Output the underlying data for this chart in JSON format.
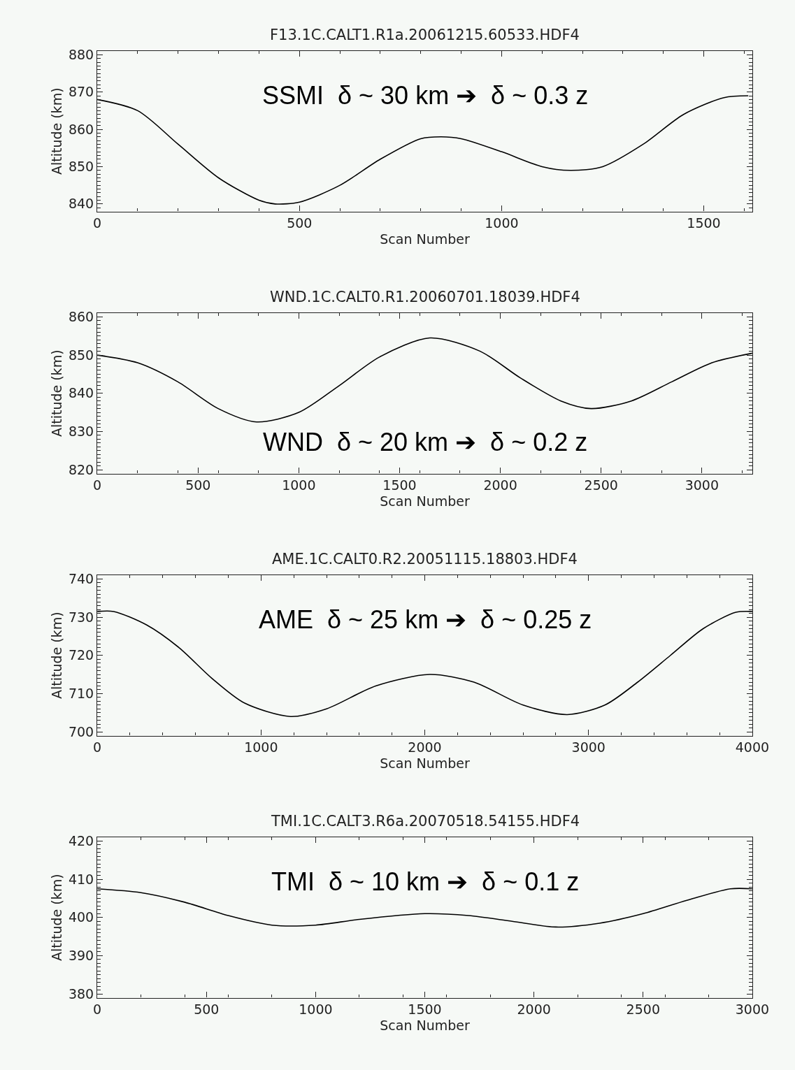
{
  "chart_data": [
    {
      "type": "line",
      "title": "F13.1C.CALT1.R1a.20061215.60533.HDF4",
      "xlabel": "Scan Number",
      "ylabel": "Altitude (km)",
      "annotations": [
        "SSMI  δ ~ 30 km ➔  δ ~ 0.3 z"
      ],
      "xlim": [
        0,
        1620
      ],
      "xticks": [
        0,
        500,
        1000,
        1500
      ],
      "ylim": [
        838,
        881
      ],
      "yticks": [
        840,
        850,
        860,
        870,
        880
      ],
      "grid": false,
      "series": [
        {
          "color": "#000000",
          "x": [
            0,
            100,
            200,
            300,
            400,
            440,
            500,
            600,
            700,
            800,
            850,
            900,
            1000,
            1100,
            1170,
            1250,
            1350,
            1450,
            1550,
            1610
          ],
          "values": [
            868,
            865,
            856,
            847,
            841,
            840,
            840.5,
            845,
            852,
            857.5,
            858,
            857.5,
            854,
            850,
            849,
            850,
            856,
            864,
            868.5,
            869
          ]
        }
      ]
    },
    {
      "type": "line",
      "title": "WND.1C.CALT0.R1.20060701.18039.HDF4",
      "xlabel": "Scan Number",
      "ylabel": "Altitude (km)",
      "annotations": [
        "WND  δ ~ 20 km ➔  δ ~ 0.2 z"
      ],
      "xlim": [
        0,
        3250
      ],
      "xticks": [
        0,
        500,
        1000,
        1500,
        2000,
        2500,
        3000
      ],
      "ylim": [
        819,
        861
      ],
      "yticks": [
        820,
        830,
        840,
        850,
        860
      ],
      "grid": false,
      "series": [
        {
          "color": "#000000",
          "x": [
            0,
            200,
            400,
            600,
            790,
            1000,
            1200,
            1400,
            1650,
            1900,
            2100,
            2300,
            2450,
            2650,
            2850,
            3050,
            3250
          ],
          "values": [
            850,
            848,
            843,
            836,
            832.5,
            835,
            842,
            849.5,
            854.5,
            851,
            844,
            838,
            836,
            838,
            843,
            848,
            850.5
          ]
        }
      ]
    },
    {
      "type": "line",
      "title": "AME.1C.CALT0.R2.20051115.18803.HDF4",
      "xlabel": "Scan Number",
      "ylabel": "Altitude (km)",
      "annotations": [
        "AME  δ ~ 25 km ➔  δ ~ 0.25 z"
      ],
      "xlim": [
        0,
        4000
      ],
      "xticks": [
        0,
        1000,
        2000,
        3000,
        4000
      ],
      "ylim": [
        699,
        741
      ],
      "yticks": [
        700,
        710,
        720,
        730,
        740
      ],
      "grid": false,
      "series": [
        {
          "color": "#000000",
          "x": [
            0,
            100,
            300,
            500,
            700,
            900,
            1180,
            1400,
            1700,
            2030,
            2300,
            2600,
            2870,
            3100,
            3300,
            3500,
            3700,
            3900,
            4000
          ],
          "values": [
            731.5,
            731.5,
            728,
            722,
            714,
            707.5,
            704,
            706,
            712,
            715,
            713,
            707,
            704.5,
            707,
            713,
            720,
            727,
            731.3,
            731.5
          ]
        }
      ]
    },
    {
      "type": "line",
      "title": "TMI.1C.CALT3.R6a.20070518.54155.HDF4",
      "xlabel": "Scan Number",
      "ylabel": "Altitude (km)",
      "annotations": [
        "TMI  δ ~ 10 km ➔  δ ~ 0.1 z"
      ],
      "xlim": [
        0,
        3000
      ],
      "xticks": [
        0,
        500,
        1000,
        1500,
        2000,
        2500,
        3000
      ],
      "ylim": [
        379,
        421
      ],
      "yticks": [
        380,
        390,
        400,
        410,
        420
      ],
      "grid": false,
      "series": [
        {
          "color": "#000000",
          "x": [
            0,
            200,
            400,
            600,
            800,
            1000,
            1200,
            1500,
            1700,
            1900,
            2100,
            2300,
            2500,
            2700,
            2900,
            3000
          ],
          "values": [
            407.5,
            406.5,
            404,
            400.5,
            398,
            398,
            399.5,
            401,
            400.5,
            399,
            397.5,
            398.5,
            401,
            404.5,
            407.5,
            407.5
          ]
        }
      ]
    }
  ]
}
